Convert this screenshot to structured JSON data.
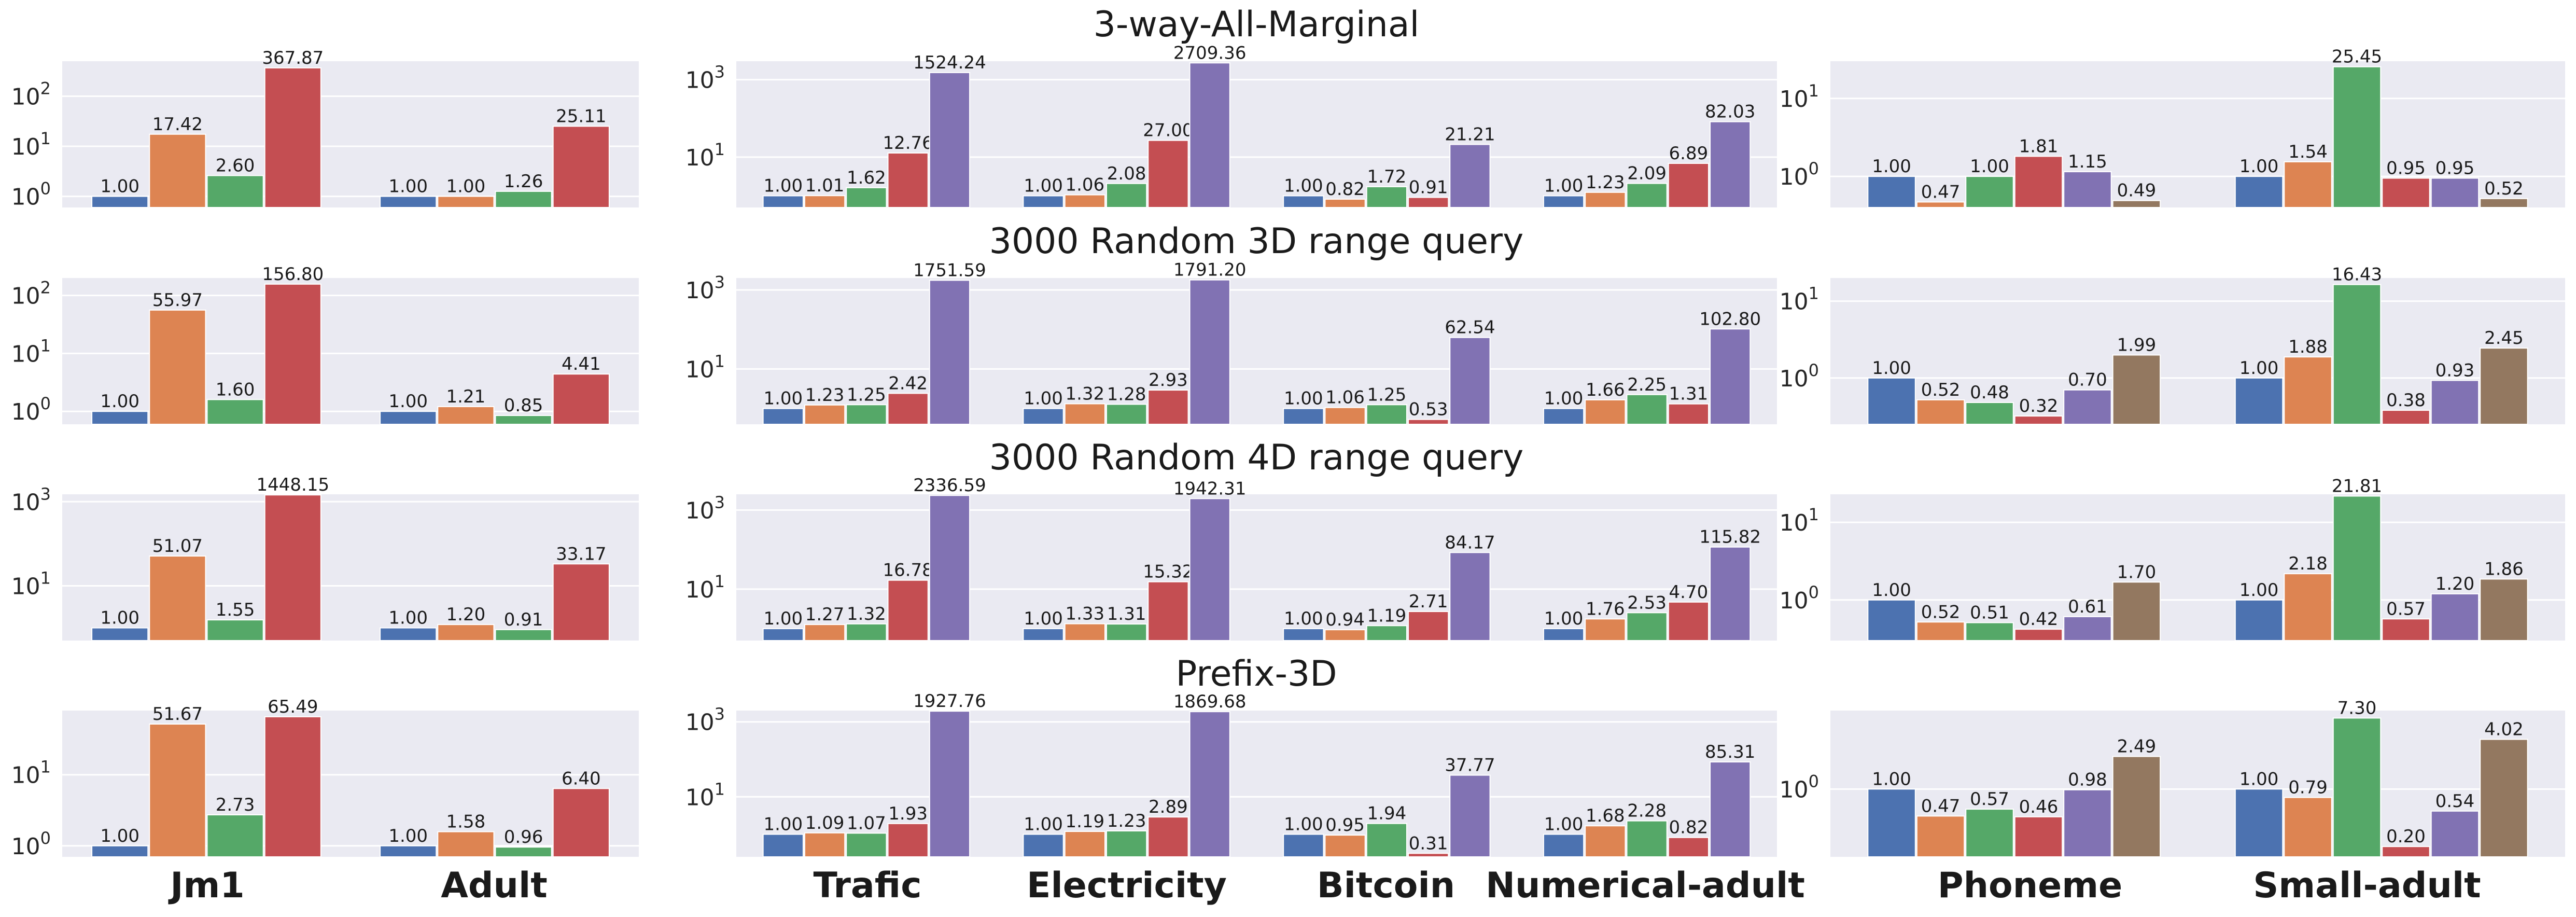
{
  "colors": [
    "#4c72b0",
    "#dd8452",
    "#55a868",
    "#c44e52",
    "#8172b3",
    "#937860"
  ],
  "panel_bg": "#eaeaf2",
  "row_titles": [
    "3-way-All-Marginal",
    "3000 Random 3D range query",
    "3000 Random 4D range query",
    "Prefix-3D"
  ],
  "x_categories": [
    [
      "Jm1",
      "Adult"
    ],
    [
      "Trafic",
      "Electricity",
      "Bitcoin",
      "Numerical-adult"
    ],
    [
      "Phoneme",
      "Small-adult"
    ]
  ],
  "chart_data": [
    {
      "type": "bar",
      "yscale": "log",
      "row_title": "3-way-All-Marginal",
      "categories": [
        "Jm1",
        "Adult"
      ],
      "n_series": 4,
      "ylim": [
        0.6,
        500
      ],
      "yticks": [
        {
          "v": 1,
          "label": "10^0"
        },
        {
          "v": 10,
          "label": "10^1"
        },
        {
          "v": 100,
          "label": "10^2"
        }
      ],
      "values": [
        [
          1.0,
          17.42,
          2.6,
          367.87
        ],
        [
          1.0,
          1.0,
          1.26,
          25.11
        ]
      ],
      "labels": [
        [
          "1.00",
          "17.42",
          "2.60",
          "367.87"
        ],
        [
          "1.00",
          "1.00",
          "1.26",
          "25.11"
        ]
      ]
    },
    {
      "type": "bar",
      "yscale": "log",
      "row_title": "3-way-All-Marginal",
      "categories": [
        "Trafic",
        "Electricity",
        "Bitcoin",
        "Numerical-adult"
      ],
      "n_series": 5,
      "ylim": [
        0.5,
        3000
      ],
      "yticks": [
        {
          "v": 10,
          "label": "10^1"
        },
        {
          "v": 1000,
          "label": "10^3"
        }
      ],
      "values": [
        [
          1.0,
          1.01,
          1.62,
          12.76,
          1524.24
        ],
        [
          1.0,
          1.06,
          2.08,
          27.0,
          2709.36
        ],
        [
          1.0,
          0.82,
          1.72,
          0.91,
          21.21
        ],
        [
          1.0,
          1.23,
          2.09,
          6.89,
          82.03
        ]
      ],
      "labels": [
        [
          "1.00",
          "1.01",
          "1.62",
          "12.76",
          "1524.24"
        ],
        [
          "1.00",
          "1.06",
          "2.08",
          "27.00",
          "2709.36"
        ],
        [
          "1.00",
          "0.82",
          "1.72",
          "0.91",
          "21.21"
        ],
        [
          "1.00",
          "1.23",
          "2.09",
          "6.89",
          "82.03"
        ]
      ]
    },
    {
      "type": "bar",
      "yscale": "log",
      "row_title": "3-way-All-Marginal",
      "categories": [
        "Phoneme",
        "Small-adult"
      ],
      "n_series": 6,
      "ylim": [
        0.4,
        30
      ],
      "yticks": [
        {
          "v": 1,
          "label": "10^0"
        },
        {
          "v": 10,
          "label": "10^1"
        }
      ],
      "values": [
        [
          1.0,
          0.47,
          1.0,
          1.81,
          1.15,
          0.49
        ],
        [
          1.0,
          1.54,
          25.45,
          0.95,
          0.95,
          0.52
        ]
      ],
      "labels": [
        [
          "1.00",
          "0.47",
          "1.00",
          "1.81",
          "1.15",
          "0.49"
        ],
        [
          "1.00",
          "1.54",
          "25.45",
          "0.95",
          "0.95",
          "0.52"
        ]
      ]
    },
    {
      "type": "bar",
      "yscale": "log",
      "row_title": "3000 Random 3D range query",
      "categories": [
        "Jm1",
        "Adult"
      ],
      "n_series": 4,
      "ylim": [
        0.6,
        200
      ],
      "yticks": [
        {
          "v": 1,
          "label": "10^0"
        },
        {
          "v": 10,
          "label": "10^1"
        },
        {
          "v": 100,
          "label": "10^2"
        }
      ],
      "values": [
        [
          1.0,
          55.97,
          1.6,
          156.8
        ],
        [
          1.0,
          1.21,
          0.85,
          4.41
        ]
      ],
      "labels": [
        [
          "1.00",
          "55.97",
          "1.60",
          "156.80"
        ],
        [
          "1.00",
          "1.21",
          "0.85",
          "4.41"
        ]
      ]
    },
    {
      "type": "bar",
      "yscale": "log",
      "row_title": "3000 Random 3D range query",
      "categories": [
        "Trafic",
        "Electricity",
        "Bitcoin",
        "Numerical-adult"
      ],
      "n_series": 5,
      "ylim": [
        0.4,
        2000
      ],
      "yticks": [
        {
          "v": 10,
          "label": "10^1"
        },
        {
          "v": 1000,
          "label": "10^3"
        }
      ],
      "values": [
        [
          1.0,
          1.23,
          1.25,
          2.42,
          1751.59
        ],
        [
          1.0,
          1.32,
          1.28,
          2.93,
          1791.2
        ],
        [
          1.0,
          1.06,
          1.25,
          0.53,
          62.54
        ],
        [
          1.0,
          1.66,
          2.25,
          1.31,
          102.8
        ]
      ],
      "labels": [
        [
          "1.00",
          "1.23",
          "1.25",
          "2.42",
          "1751.59"
        ],
        [
          "1.00",
          "1.32",
          "1.28",
          "2.93",
          "1791.20"
        ],
        [
          "1.00",
          "1.06",
          "1.25",
          "0.53",
          "62.54"
        ],
        [
          "1.00",
          "1.66",
          "2.25",
          "1.31",
          "102.80"
        ]
      ]
    },
    {
      "type": "bar",
      "yscale": "log",
      "row_title": "3000 Random 3D range query",
      "categories": [
        "Phoneme",
        "Small-adult"
      ],
      "n_series": 6,
      "ylim": [
        0.25,
        20
      ],
      "yticks": [
        {
          "v": 1,
          "label": "10^0"
        },
        {
          "v": 10,
          "label": "10^1"
        }
      ],
      "values": [
        [
          1.0,
          0.52,
          0.48,
          0.32,
          0.7,
          1.99
        ],
        [
          1.0,
          1.88,
          16.43,
          0.38,
          0.93,
          2.45
        ]
      ],
      "labels": [
        [
          "1.00",
          "0.52",
          "0.48",
          "0.32",
          "0.70",
          "1.99"
        ],
        [
          "1.00",
          "1.88",
          "16.43",
          "0.38",
          "0.93",
          "2.45"
        ]
      ]
    },
    {
      "type": "bar",
      "yscale": "log",
      "row_title": "3000 Random 4D range query",
      "categories": [
        "Jm1",
        "Adult"
      ],
      "n_series": 4,
      "ylim": [
        0.5,
        1500
      ],
      "yticks": [
        {
          "v": 10,
          "label": "10^1"
        },
        {
          "v": 1000,
          "label": "10^3"
        }
      ],
      "values": [
        [
          1.0,
          51.07,
          1.55,
          1448.15
        ],
        [
          1.0,
          1.2,
          0.91,
          33.17
        ]
      ],
      "labels": [
        [
          "1.00",
          "51.07",
          "1.55",
          "1448.15"
        ],
        [
          "1.00",
          "1.20",
          "0.91",
          "33.17"
        ]
      ]
    },
    {
      "type": "bar",
      "yscale": "log",
      "row_title": "3000 Random 4D range query",
      "categories": [
        "Trafic",
        "Electricity",
        "Bitcoin",
        "Numerical-adult"
      ],
      "n_series": 5,
      "ylim": [
        0.5,
        2500
      ],
      "yticks": [
        {
          "v": 10,
          "label": "10^1"
        },
        {
          "v": 1000,
          "label": "10^3"
        }
      ],
      "values": [
        [
          1.0,
          1.27,
          1.32,
          16.78,
          2336.59
        ],
        [
          1.0,
          1.33,
          1.31,
          15.32,
          1942.31
        ],
        [
          1.0,
          0.94,
          1.19,
          2.71,
          84.17
        ],
        [
          1.0,
          1.76,
          2.53,
          4.7,
          115.82
        ]
      ],
      "labels": [
        [
          "1.00",
          "1.27",
          "1.32",
          "16.78",
          "2336.59"
        ],
        [
          "1.00",
          "1.33",
          "1.31",
          "15.32",
          "1942.31"
        ],
        [
          "1.00",
          "0.94",
          "1.19",
          "2.71",
          "84.17"
        ],
        [
          "1.00",
          "1.76",
          "2.53",
          "4.70",
          "115.82"
        ]
      ]
    },
    {
      "type": "bar",
      "yscale": "log",
      "row_title": "3000 Random 4D range query",
      "categories": [
        "Phoneme",
        "Small-adult"
      ],
      "n_series": 6,
      "ylim": [
        0.3,
        23
      ],
      "yticks": [
        {
          "v": 1,
          "label": "10^0"
        },
        {
          "v": 10,
          "label": "10^1"
        }
      ],
      "values": [
        [
          1.0,
          0.52,
          0.51,
          0.42,
          0.61,
          1.7
        ],
        [
          1.0,
          2.18,
          21.81,
          0.57,
          1.2,
          1.86
        ]
      ],
      "labels": [
        [
          "1.00",
          "0.52",
          "0.51",
          "0.42",
          "0.61",
          "1.70"
        ],
        [
          "1.00",
          "2.18",
          "21.81",
          "0.57",
          "1.20",
          "1.86"
        ]
      ]
    },
    {
      "type": "bar",
      "yscale": "log",
      "row_title": "Prefix-3D",
      "categories": [
        "Jm1",
        "Adult"
      ],
      "n_series": 4,
      "ylim": [
        0.7,
        80
      ],
      "yticks": [
        {
          "v": 1,
          "label": "10^0"
        },
        {
          "v": 10,
          "label": "10^1"
        }
      ],
      "values": [
        [
          1.0,
          51.67,
          2.73,
          65.49
        ],
        [
          1.0,
          1.58,
          0.96,
          6.4
        ]
      ],
      "labels": [
        [
          "1.00",
          "51.67",
          "2.73",
          "65.49"
        ],
        [
          "1.00",
          "1.58",
          "0.96",
          "6.40"
        ]
      ]
    },
    {
      "type": "bar",
      "yscale": "log",
      "row_title": "Prefix-3D",
      "categories": [
        "Trafic",
        "Electricity",
        "Bitcoin",
        "Numerical-adult"
      ],
      "n_series": 5,
      "ylim": [
        0.25,
        2000
      ],
      "yticks": [
        {
          "v": 10,
          "label": "10^1"
        },
        {
          "v": 1000,
          "label": "10^3"
        }
      ],
      "values": [
        [
          1.0,
          1.09,
          1.07,
          1.93,
          1927.76
        ],
        [
          1.0,
          1.19,
          1.23,
          2.89,
          1869.68
        ],
        [
          1.0,
          0.95,
          1.94,
          0.31,
          37.77
        ],
        [
          1.0,
          1.68,
          2.28,
          0.82,
          85.31
        ]
      ],
      "labels": [
        [
          "1.00",
          "1.09",
          "1.07",
          "1.93",
          "1927.76"
        ],
        [
          "1.00",
          "1.19",
          "1.23",
          "2.89",
          "1869.68"
        ],
        [
          "1.00",
          "0.95",
          "1.94",
          "0.31",
          "37.77"
        ],
        [
          "1.00",
          "1.68",
          "2.28",
          "0.82",
          "85.31"
        ]
      ]
    },
    {
      "type": "bar",
      "yscale": "log",
      "row_title": "Prefix-3D",
      "categories": [
        "Phoneme",
        "Small-adult"
      ],
      "n_series": 6,
      "ylim": [
        0.15,
        9
      ],
      "yticks": [
        {
          "v": 1,
          "label": "10^0"
        }
      ],
      "values": [
        [
          1.0,
          0.47,
          0.57,
          0.46,
          0.98,
          2.49
        ],
        [
          1.0,
          0.79,
          7.3,
          0.2,
          0.54,
          4.02
        ]
      ],
      "labels": [
        [
          "1.00",
          "0.47",
          "0.57",
          "0.46",
          "0.98",
          "2.49"
        ],
        [
          "1.00",
          "0.79",
          "7.30",
          "0.20",
          "0.54",
          "4.02"
        ]
      ]
    }
  ]
}
